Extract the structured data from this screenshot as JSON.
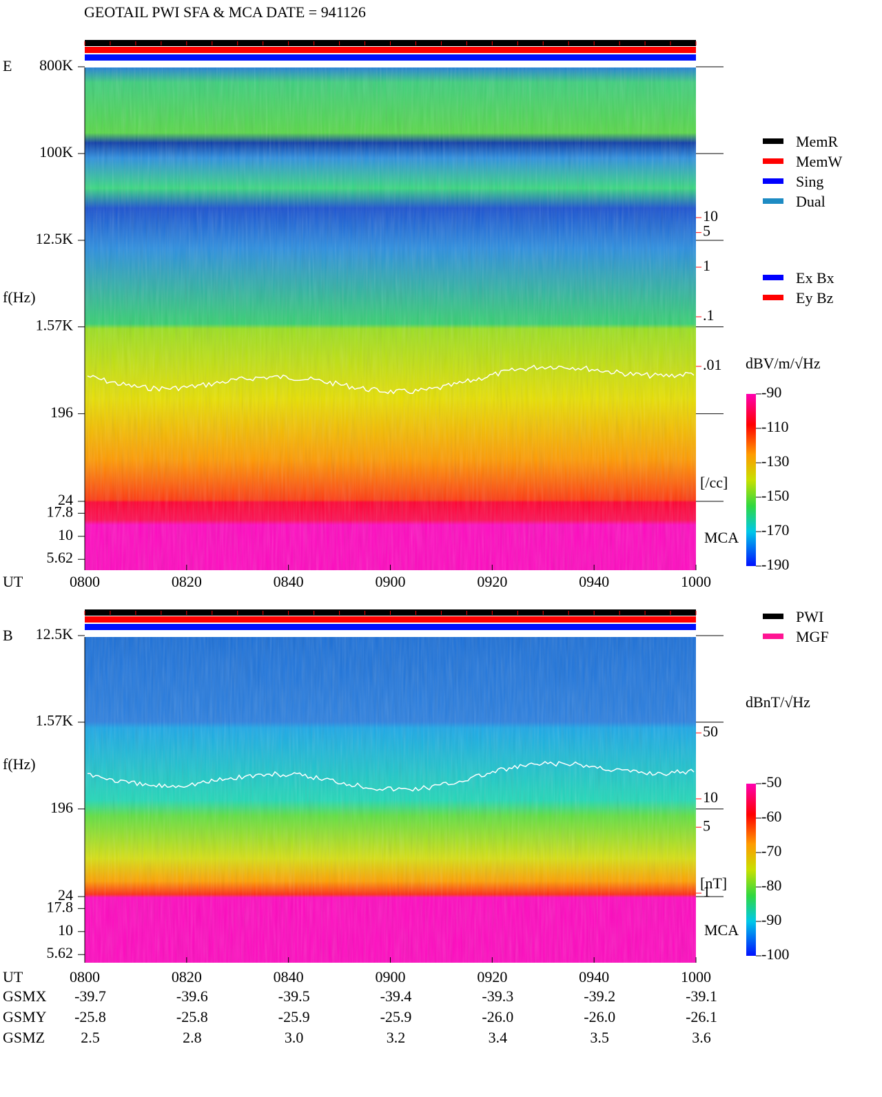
{
  "header": {
    "title": "GEOTAIL  PWI SFA & MCA   DATE = 941126"
  },
  "chart_data": [
    {
      "type": "spectrogram",
      "panel_label": "E",
      "y_label": "f(Hz)",
      "x_label": "UT",
      "x": [
        "0800",
        "0820",
        "0840",
        "0900",
        "0920",
        "0940",
        "1000"
      ],
      "log_scale": true,
      "yticks": [
        {
          "value": 800000,
          "label": "800K"
        },
        {
          "value": 100000,
          "label": "100K"
        },
        {
          "value": 12500,
          "label": "12.5K"
        },
        {
          "value": 1570,
          "label": "1.57K"
        },
        196,
        24,
        17.8,
        10,
        5.62
      ],
      "mca_label": "MCA",
      "colorbar": {
        "label": "dBV/m/√Hz",
        "lim": [
          -90,
          -190
        ],
        "ticks": [
          -90,
          -110,
          -130,
          -150,
          -170,
          -190
        ]
      },
      "density_scale": {
        "label": "[/cc]",
        "color": "#ff0000",
        "ticks": [
          10,
          5,
          1,
          {
            "value": 0.1,
            "label": ".1"
          },
          {
            "value": 0.01,
            "label": ".01"
          }
        ]
      },
      "legend": [
        {
          "name": "MemR",
          "color": "#000000"
        },
        {
          "name": "MemW",
          "color": "#ff0000"
        },
        {
          "name": "Sing",
          "color": "#0000ff"
        },
        {
          "name": "Dual",
          "color": "#1e8bc3"
        }
      ],
      "legend2": [
        {
          "name": "Ex Bx",
          "color": "#0000ff"
        },
        {
          "name": "Ey Bz",
          "color": "#ff0000"
        }
      ]
    },
    {
      "type": "spectrogram",
      "panel_label": "B",
      "y_label": "f(Hz)",
      "x_label": "UT",
      "x": [
        "0800",
        "0820",
        "0840",
        "0900",
        "0920",
        "0940",
        "1000"
      ],
      "log_scale": true,
      "yticks": [
        {
          "value": 12500,
          "label": "12.5K"
        },
        {
          "value": 1570,
          "label": "1.57K"
        },
        196,
        24,
        17.8,
        10,
        5.62
      ],
      "mca_label": "MCA",
      "colorbar": {
        "label": "dBnT/√Hz",
        "lim": [
          -50,
          -100
        ],
        "ticks": [
          -50,
          -60,
          -70,
          -80,
          -90,
          -100
        ]
      },
      "density_scale": {
        "label": "[nT]",
        "color": "#ff0000",
        "ticks": [
          50,
          10,
          5,
          1
        ]
      },
      "legend": [
        {
          "name": "PWI",
          "color": "#000000"
        },
        {
          "name": "MGF",
          "color": "#ff1493"
        }
      ]
    }
  ],
  "orbit": {
    "rows": [
      {
        "label": "GSMX",
        "values": [
          "-39.7",
          "-39.6",
          "-39.5",
          "-39.4",
          "-39.3",
          "-39.2",
          "-39.1"
        ]
      },
      {
        "label": "GSMY",
        "values": [
          "-25.8",
          "-25.8",
          "-25.9",
          "-25.9",
          "-26.0",
          "-26.0",
          "-26.1"
        ]
      },
      {
        "label": "GSMZ",
        "values": [
          "2.5",
          "2.8",
          "3.0",
          "3.2",
          "3.4",
          "3.5",
          "3.6"
        ]
      }
    ]
  }
}
